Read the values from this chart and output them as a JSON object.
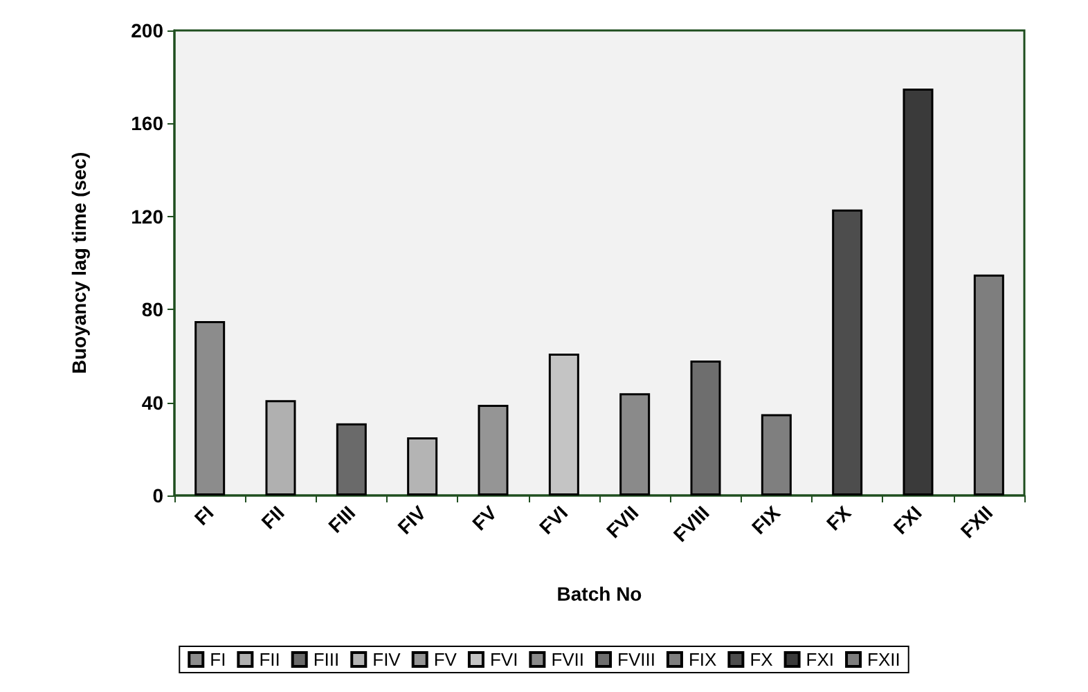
{
  "chart_data": {
    "type": "bar",
    "xlabel": "Batch No",
    "ylabel": "Buoyancy lag time (sec)",
    "categories": [
      "FI",
      "FII",
      "FIII",
      "FIV",
      "FV",
      "FVI",
      "FVII",
      "FVIII",
      "FIX",
      "FX",
      "FXI",
      "FXII"
    ],
    "series": [
      {
        "name": "FI",
        "color": "#8c8c8c",
        "values": [
          75,
          null,
          null,
          null,
          null,
          null,
          null,
          null,
          null,
          null,
          null,
          null
        ]
      },
      {
        "name": "FII",
        "color": "#b0b0b0",
        "values": [
          null,
          41,
          null,
          null,
          null,
          null,
          null,
          null,
          null,
          null,
          null,
          null
        ]
      },
      {
        "name": "FIII",
        "color": "#6a6a6a",
        "values": [
          null,
          null,
          31,
          null,
          null,
          null,
          null,
          null,
          null,
          null,
          null,
          null
        ]
      },
      {
        "name": "FIV",
        "color": "#b4b4b4",
        "values": [
          null,
          null,
          null,
          25,
          null,
          null,
          null,
          null,
          null,
          null,
          null,
          null
        ]
      },
      {
        "name": "FV",
        "color": "#959595",
        "values": [
          null,
          null,
          null,
          null,
          39,
          null,
          null,
          null,
          null,
          null,
          null,
          null
        ]
      },
      {
        "name": "FVI",
        "color": "#c4c4c4",
        "values": [
          null,
          null,
          null,
          null,
          null,
          61,
          null,
          null,
          null,
          null,
          null,
          null
        ]
      },
      {
        "name": "FVII",
        "color": "#8a8a8a",
        "values": [
          null,
          null,
          null,
          null,
          null,
          null,
          44,
          null,
          null,
          null,
          null,
          null
        ]
      },
      {
        "name": "FVIII",
        "color": "#6e6e6e",
        "values": [
          null,
          null,
          null,
          null,
          null,
          null,
          null,
          58,
          null,
          null,
          null,
          null
        ]
      },
      {
        "name": "FIX",
        "color": "#7f7f7f",
        "values": [
          null,
          null,
          null,
          null,
          null,
          null,
          null,
          null,
          35,
          null,
          null,
          null
        ]
      },
      {
        "name": "FX",
        "color": "#4d4d4d",
        "values": [
          null,
          null,
          null,
          null,
          null,
          null,
          null,
          null,
          null,
          123,
          null,
          null
        ]
      },
      {
        "name": "FXI",
        "color": "#3a3a3a",
        "values": [
          null,
          null,
          null,
          null,
          null,
          null,
          null,
          null,
          null,
          null,
          175,
          null
        ]
      },
      {
        "name": "FXII",
        "color": "#7e7e7e",
        "values": [
          null,
          null,
          null,
          null,
          null,
          null,
          null,
          null,
          null,
          null,
          null,
          95
        ]
      }
    ],
    "ylim": [
      0,
      200
    ],
    "yticks": [
      0,
      40,
      80,
      120,
      160,
      200
    ],
    "grid": false,
    "legend": "bottom"
  }
}
